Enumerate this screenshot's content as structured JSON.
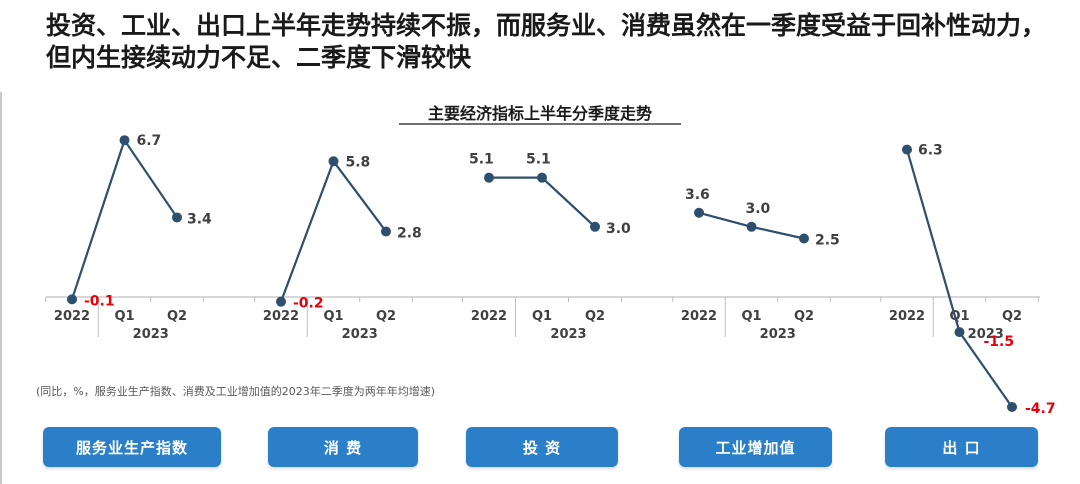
{
  "headline": "投资、工业、出口上半年走势持续不振，而服务业、消费虽然在一季度受益于回补性动力，但内生接续动力不足、二季度下滑较快",
  "note": "(同比，%，服务业生产指数、消费及工业增加值的2023年二季度为两年年均增速)",
  "buttons": [
    "服务业生产指数",
    "消 费",
    "投 资",
    "工业增加值",
    "出 口"
  ],
  "colors": {
    "line": "#2e4f6e",
    "negative": "#e8000b",
    "button": "#2a7fc8"
  },
  "chart_data": {
    "type": "line",
    "title": "主要经济指标上半年分季度走势",
    "categories": [
      "2022",
      "Q1",
      "Q2"
    ],
    "year_label": "2023",
    "series": [
      {
        "name": "服务业生产指数",
        "values": [
          -0.1,
          6.7,
          3.4
        ],
        "labels": [
          "-0.1",
          "6.7",
          "3.4"
        ]
      },
      {
        "name": "消费",
        "values": [
          -0.2,
          5.8,
          2.8
        ],
        "labels": [
          "-0.2",
          "5.8",
          "2.8"
        ]
      },
      {
        "name": "投资",
        "values": [
          5.1,
          5.1,
          3.0
        ],
        "labels": [
          "5.1",
          "5.1",
          "3.0"
        ]
      },
      {
        "name": "工业增加值",
        "values": [
          3.6,
          3.0,
          2.5
        ],
        "labels": [
          "3.6",
          "3.0",
          "2.5"
        ]
      },
      {
        "name": "出口",
        "values": [
          6.3,
          -1.5,
          -4.7
        ],
        "labels": [
          "6.3",
          "-1.5",
          "-4.7"
        ]
      }
    ]
  }
}
